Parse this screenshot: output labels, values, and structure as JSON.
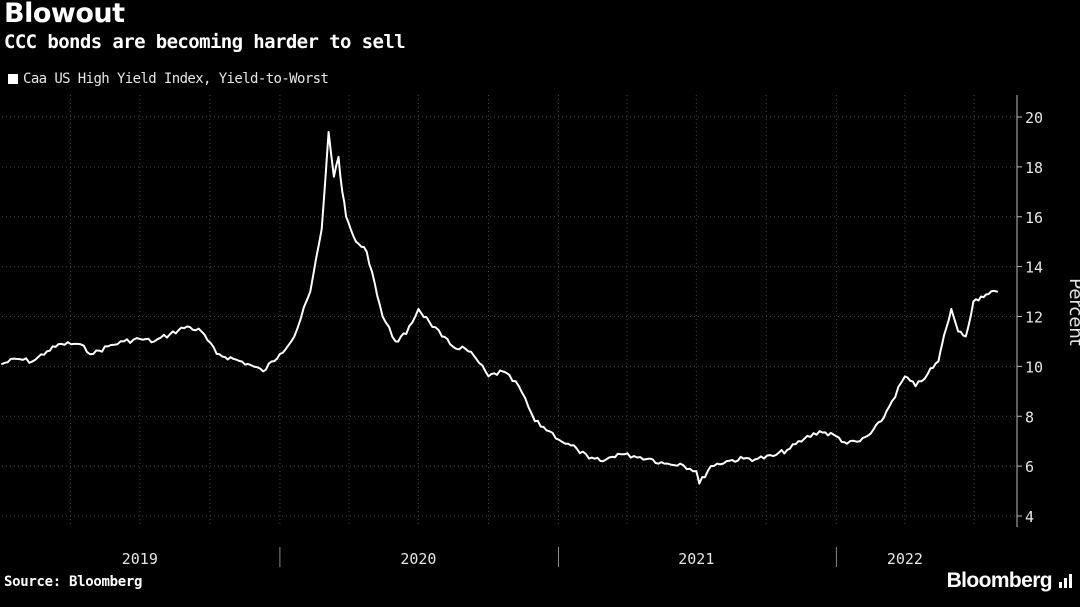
{
  "header": {
    "title": "Blowout",
    "subtitle": "CCC bonds are becoming harder to sell"
  },
  "footer": {
    "source": "Source: Bloomberg",
    "brand": "Bloomberg",
    "brand_icon": "bloomberg-chart-icon"
  },
  "colors": {
    "background": "#000000",
    "line": "#ffffff",
    "grid": "#444444",
    "text": "#ffffff"
  },
  "chart_data": {
    "type": "line",
    "title": "Blowout",
    "subtitle": "CCC bonds are becoming harder to sell",
    "ylabel": "Percent",
    "xlabel": "",
    "ylim": [
      4,
      21
    ],
    "yticks": [
      4,
      6,
      8,
      10,
      12,
      14,
      16,
      18,
      20
    ],
    "xlim": [
      "2019-01-01",
      "2022-06-01"
    ],
    "xtick_labels": [
      {
        "label": "2019",
        "date": "2019-07-01"
      },
      {
        "label": "2020",
        "date": "2020-07-01"
      },
      {
        "label": "2021",
        "date": "2021-07-01"
      },
      {
        "label": "2022",
        "date": "2022-04-01"
      }
    ],
    "legend": "top-left",
    "grid": true,
    "series": [
      {
        "name": "Caa US High Yield Index, Yield-to-Worst",
        "x": [
          "2019-01-01",
          "2019-01-20",
          "2019-02-10",
          "2019-03-01",
          "2019-03-20",
          "2019-04-10",
          "2019-05-01",
          "2019-05-20",
          "2019-06-10",
          "2019-07-01",
          "2019-07-20",
          "2019-08-10",
          "2019-09-01",
          "2019-09-20",
          "2019-10-10",
          "2019-11-01",
          "2019-11-20",
          "2019-12-10",
          "2020-01-01",
          "2020-01-20",
          "2020-02-10",
          "2020-02-25",
          "2020-03-05",
          "2020-03-12",
          "2020-03-18",
          "2020-03-23",
          "2020-03-28",
          "2020-04-03",
          "2020-04-10",
          "2020-04-17",
          "2020-04-24",
          "2020-05-01",
          "2020-05-15",
          "2020-06-01",
          "2020-06-15",
          "2020-07-01",
          "2020-07-15",
          "2020-08-01",
          "2020-08-15",
          "2020-09-01",
          "2020-09-15",
          "2020-10-01",
          "2020-10-20",
          "2020-11-10",
          "2020-12-01",
          "2020-12-20",
          "2021-01-10",
          "2021-01-25",
          "2021-02-10",
          "2021-03-01",
          "2021-03-20",
          "2021-04-10",
          "2021-05-01",
          "2021-05-20",
          "2021-06-10",
          "2021-07-01",
          "2021-07-05",
          "2021-07-20",
          "2021-08-10",
          "2021-09-01",
          "2021-09-20",
          "2021-10-10",
          "2021-11-01",
          "2021-11-20",
          "2021-12-10",
          "2022-01-01",
          "2022-01-15",
          "2022-02-01",
          "2022-02-15",
          "2022-03-01",
          "2022-03-15",
          "2022-04-01",
          "2022-04-15",
          "2022-05-01",
          "2022-05-15",
          "2022-05-20",
          "2022-05-25",
          "2022-06-01",
          "2022-06-10",
          "2022-06-20",
          "2022-06-30",
          "2022-07-10",
          "2022-07-20",
          "2022-07-31"
        ],
        "y": [
          10.1,
          10.3,
          10.2,
          10.6,
          10.9,
          10.9,
          10.5,
          10.8,
          11.0,
          11.1,
          11.0,
          11.3,
          11.6,
          11.4,
          10.5,
          10.3,
          10.1,
          9.8,
          10.5,
          11.2,
          13.0,
          15.5,
          19.4,
          17.6,
          18.4,
          17.0,
          16.0,
          15.5,
          15.0,
          14.8,
          14.6,
          13.8,
          12.0,
          11.0,
          11.3,
          12.3,
          11.8,
          11.2,
          10.8,
          10.7,
          10.3,
          9.6,
          9.8,
          9.2,
          7.8,
          7.4,
          6.9,
          6.7,
          6.3,
          6.2,
          6.5,
          6.4,
          6.3,
          6.1,
          6.1,
          5.8,
          5.3,
          6.0,
          6.2,
          6.3,
          6.3,
          6.4,
          6.7,
          7.1,
          7.4,
          7.2,
          6.9,
          7.0,
          7.3,
          7.8,
          8.6,
          9.6,
          9.2,
          9.7,
          10.2,
          10.9,
          11.5,
          12.3,
          11.4,
          11.2,
          12.6,
          12.8,
          12.9,
          13.0
        ]
      }
    ]
  }
}
